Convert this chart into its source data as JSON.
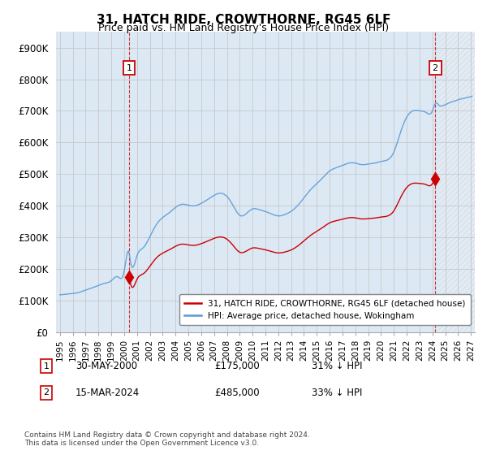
{
  "title": "31, HATCH RIDE, CROWTHORNE, RG45 6LF",
  "subtitle": "Price paid vs. HM Land Registry's House Price Index (HPI)",
  "ylim": [
    0,
    950000
  ],
  "yticks": [
    0,
    100000,
    200000,
    300000,
    400000,
    500000,
    600000,
    700000,
    800000,
    900000
  ],
  "ytick_labels": [
    "£0",
    "£100K",
    "£200K",
    "£300K",
    "£400K",
    "£500K",
    "£600K",
    "£700K",
    "£800K",
    "£900K"
  ],
  "hpi_color": "#5b9bd5",
  "price_color": "#cc0000",
  "bg_fill_color": "#dce9f5",
  "hatch_fill_color": "#c8d8e8",
  "grid_color": "#c8c8c8",
  "legend_label_red": "31, HATCH RIDE, CROWTHORNE, RG45 6LF (detached house)",
  "legend_label_blue": "HPI: Average price, detached house, Wokingham",
  "annotation1_label": "1",
  "annotation1_date": "30-MAY-2000",
  "annotation1_price": "£175,000",
  "annotation1_hpi": "31% ↓ HPI",
  "annotation2_label": "2",
  "annotation2_date": "15-MAR-2024",
  "annotation2_price": "£485,000",
  "annotation2_hpi": "33% ↓ HPI",
  "footer": "Contains HM Land Registry data © Crown copyright and database right 2024.\nThis data is licensed under the Open Government Licence v3.0.",
  "sale1_x": 2000.38,
  "sale1_y": 175000,
  "sale2_x": 2024.21,
  "sale2_y": 485000,
  "xmin": 1994.7,
  "xmax": 2027.3,
  "hatch_start": 2024.5
}
